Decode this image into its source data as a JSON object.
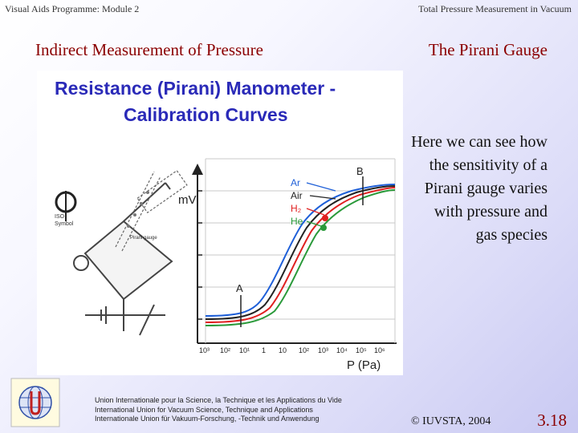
{
  "header": {
    "left": "Visual Aids Programme: Module 2",
    "right": "Total Pressure Measurement in Vacuum"
  },
  "subtitle": {
    "left": "Indirect Measurement of Pressure",
    "right": "The Pirani Gauge"
  },
  "figure": {
    "title_line1": "Resistance (Pirani) Manometer -",
    "title_line2": "Calibration Curves",
    "y_axis_label": "mV",
    "x_axis_label": "P (Pa)",
    "x_ticks": [
      "10³",
      "10²",
      "10¹",
      "1",
      "10",
      "10²",
      "10³",
      "10⁴",
      "10⁵",
      "10⁶"
    ],
    "point_a": "A",
    "point_b": "B",
    "gas_labels": [
      "Ar",
      "Air",
      "H₂",
      "He"
    ],
    "gas_colors": [
      "#1e5fd8",
      "#222222",
      "#e02020",
      "#2a9a3a"
    ],
    "iso_label": "ISO",
    "symbol_label": "Symbol",
    "gauge_label": "Pirani gauge"
  },
  "description": "Here we can see how the sensitivity of a Pirani gauge varies with pressure and gas species",
  "footer": {
    "line1": "Union Internationale pour la Science, la Technique et les Applications du Vide",
    "line2": "International Union for Vacuum Science, Technique and Applications",
    "line3": "Internationale Union für Vakuum-Forschung, -Technik und Anwendung",
    "copyright": "© IUVSTA, 2004",
    "slide_number": "3.18"
  }
}
